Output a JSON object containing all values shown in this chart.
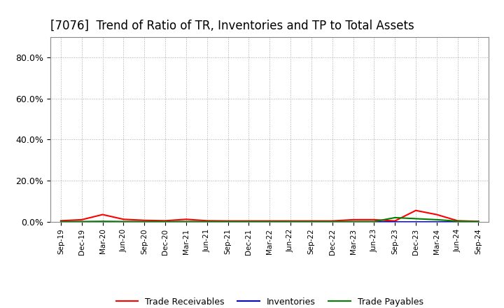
{
  "title": "[7076]  Trend of Ratio of TR, Inventories and TP to Total Assets",
  "title_fontsize": 12,
  "background_color": "#ffffff",
  "plot_background": "#ffffff",
  "grid_color": "#aaaaaa",
  "x_labels": [
    "Sep-19",
    "Dec-19",
    "Mar-20",
    "Jun-20",
    "Sep-20",
    "Dec-20",
    "Mar-21",
    "Jun-21",
    "Sep-21",
    "Dec-21",
    "Mar-22",
    "Jun-22",
    "Sep-22",
    "Dec-22",
    "Mar-23",
    "Jun-23",
    "Sep-23",
    "Dec-23",
    "Mar-24",
    "Jun-24",
    "Sep-24"
  ],
  "trade_receivables": [
    0.005,
    0.01,
    0.035,
    0.012,
    0.007,
    0.005,
    0.012,
    0.005,
    0.004,
    0.004,
    0.004,
    0.004,
    0.004,
    0.004,
    0.01,
    0.01,
    0.004,
    0.055,
    0.035,
    0.005,
    0.002
  ],
  "inventories": [
    0.001,
    0.001,
    0.001,
    0.001,
    0.001,
    0.001,
    0.001,
    0.001,
    0.001,
    0.001,
    0.001,
    0.001,
    0.001,
    0.001,
    0.001,
    0.001,
    0.001,
    0.001,
    0.001,
    0.001,
    0.001
  ],
  "trade_payables": [
    0.001,
    0.001,
    0.002,
    0.001,
    0.001,
    0.001,
    0.001,
    0.001,
    0.001,
    0.001,
    0.001,
    0.001,
    0.001,
    0.001,
    0.001,
    0.001,
    0.02,
    0.015,
    0.01,
    0.003,
    0.001
  ],
  "tr_color": "#ff0000",
  "inv_color": "#0000ff",
  "tp_color": "#008000",
  "line_width": 1.5,
  "ylim": [
    0.0,
    0.9
  ],
  "yticks": [
    0.0,
    0.2,
    0.4,
    0.6,
    0.8
  ],
  "ytick_labels": [
    "0.0%",
    "20.0%",
    "40.0%",
    "60.0%",
    "80.0%"
  ]
}
